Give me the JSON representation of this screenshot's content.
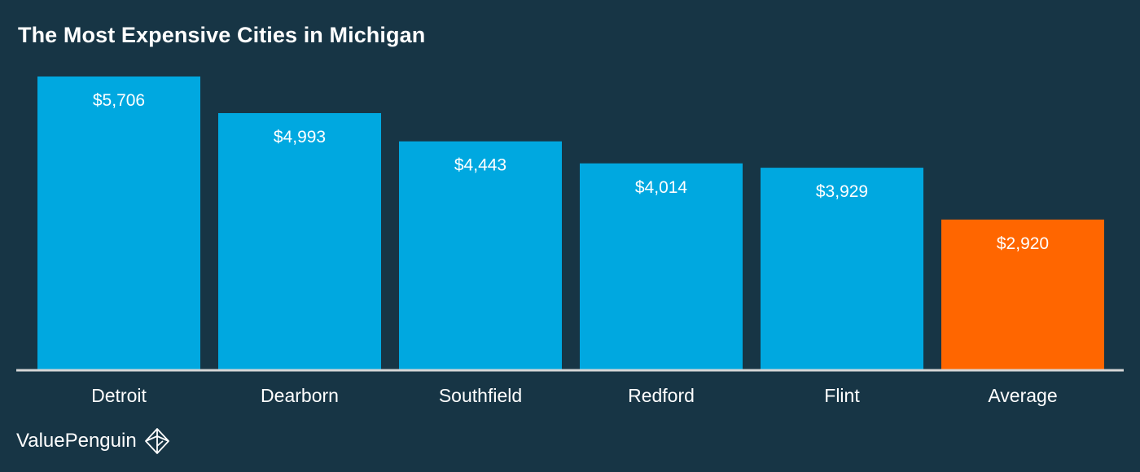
{
  "chart_data": {
    "type": "bar",
    "title": "The Most Expensive Cities in Michigan",
    "categories": [
      "Detroit",
      "Dearborn",
      "Southfield",
      "Redford",
      "Flint",
      "Average"
    ],
    "values": [
      5706,
      4993,
      4443,
      4014,
      3929,
      2920
    ],
    "value_labels": [
      "$5,706",
      "$4,993",
      "$4,443",
      "$4,014",
      "$3,929",
      "$2,920"
    ],
    "bar_colors": [
      "#00A8E0",
      "#00A8E0",
      "#00A8E0",
      "#00A8E0",
      "#00A8E0",
      "#FF6600"
    ],
    "ylim": [
      0,
      5706
    ],
    "xlabel": "",
    "ylabel": "",
    "grid": false,
    "legend": "none"
  },
  "colors": {
    "background": "#173545",
    "bar": "#00A8E0",
    "highlight": "#FF6600",
    "axis": "#D6D6D6",
    "text": "#FFFFFF"
  },
  "branding": {
    "name": "ValuePenguin",
    "icon": "valuepenguin-logo-icon"
  }
}
